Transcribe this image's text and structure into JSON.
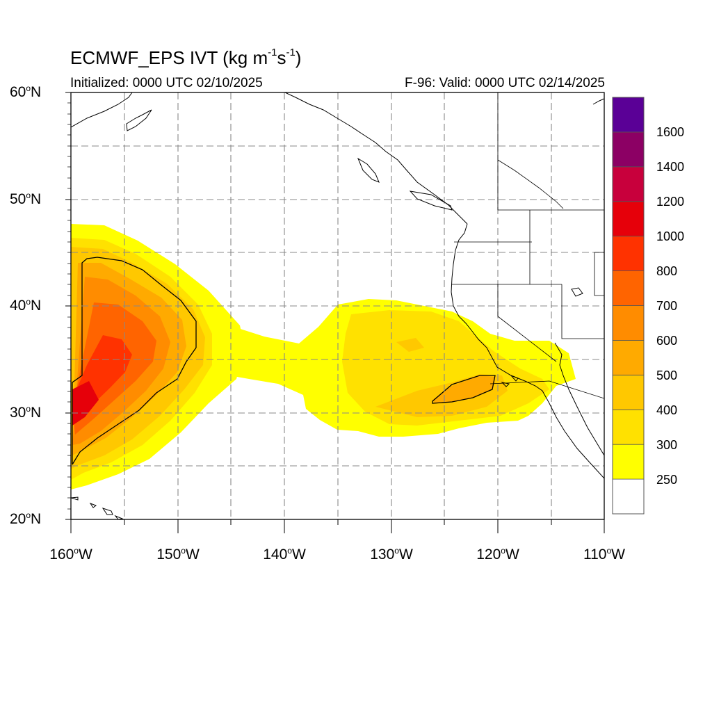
{
  "header": {
    "title_prefix": "ECMWF_EPS IVT (kg m",
    "sup1": "-1",
    "title_mid": "s",
    "sup2": "-1",
    "title_suffix": ")",
    "initialized": "Initialized: 0000 UTC 02/10/2025",
    "valid": "F-96: Valid: 0000 UTC 02/14/2025"
  },
  "axes": {
    "lat_ticks": [
      "60",
      "50",
      "40",
      "30",
      "20"
    ],
    "lat_suffix": "N",
    "lon_ticks": [
      "160",
      "150",
      "140",
      "130",
      "120",
      "110"
    ],
    "lon_suffix": "W",
    "degree_symbol": "o",
    "lat_range": [
      20,
      60
    ],
    "lon_range": [
      -160,
      -110
    ],
    "grid": "dashed, every 5 degrees"
  },
  "colorbar": {
    "levels": [
      "250",
      "300",
      "400",
      "500",
      "600",
      "700",
      "800",
      "1000",
      "1200",
      "1400",
      "1600"
    ],
    "colors": [
      "#ffffff",
      "#ffff00",
      "#ffe100",
      "#ffc800",
      "#ffaa00",
      "#ff8c00",
      "#ff6400",
      "#ff3200",
      "#e6000a",
      "#c8003c",
      "#8c0064",
      "#5a0096"
    ]
  },
  "contour_level": "500",
  "map": {
    "ocean_color": "#ffffff",
    "coast_color": "#000000"
  }
}
